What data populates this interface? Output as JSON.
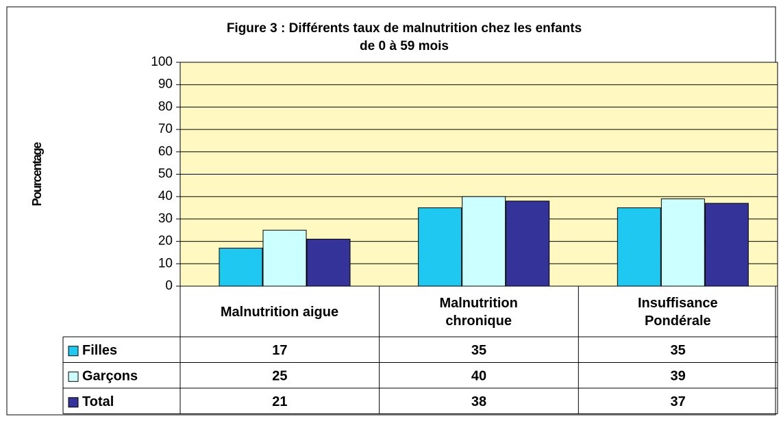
{
  "chart_data": {
    "type": "bar",
    "title": "Figure 3 : Différents taux de malnutrition chez les enfants\nde 0 à 59 mois",
    "y_label": "Pourcentage",
    "categories": [
      "Malnutrition aigue",
      "Malnutrition\nchronique",
      "Insuffisance\nPondérale"
    ],
    "series": [
      {
        "name": "Filles",
        "color": "#1ec8f0",
        "values": [
          17,
          35,
          35
        ]
      },
      {
        "name": "Garçons",
        "color": "#ccffff",
        "values": [
          25,
          40,
          39
        ]
      },
      {
        "name": "Total",
        "color": "#333399",
        "values": [
          21,
          38,
          37
        ]
      }
    ],
    "ylim": [
      0,
      100
    ],
    "yticks": [
      0,
      10,
      20,
      30,
      40,
      50,
      60,
      70,
      80,
      90,
      100
    ],
    "grid": true,
    "plot_background": "#fff8c0",
    "data_table": true
  }
}
